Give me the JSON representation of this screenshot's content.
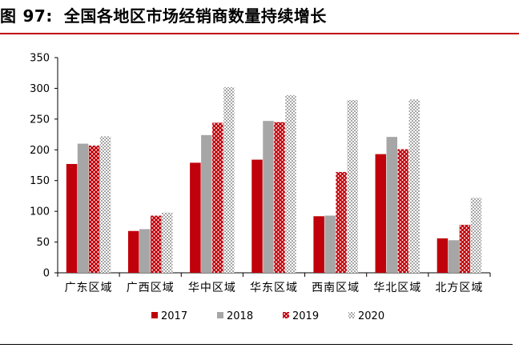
{
  "figure": {
    "label": "图",
    "number": "97:",
    "title": "全国各地区市场经销商数量持续增长"
  },
  "colors": {
    "s2017": "#c0000a",
    "s2018": "#a6a6a6",
    "s2019": "#c0000a",
    "s2020": "#bfbfbf",
    "rule": "#c0000a"
  },
  "chart_data": {
    "type": "bar",
    "title": "全国各地区市场经销商数量持续增长",
    "xlabel": "",
    "ylabel": "",
    "ylim": [
      0,
      350
    ],
    "yticks": [
      "0",
      "50",
      "100",
      "150",
      "200",
      "250",
      "300",
      "350"
    ],
    "categories": [
      "广东区域",
      "广西区域",
      "华中区域",
      "华东区域",
      "西南区域",
      "华北区域",
      "北方区域"
    ],
    "series": [
      {
        "name": "2017",
        "pattern": "solid",
        "values": [
          177,
          68,
          179,
          184,
          92,
          193,
          56
        ]
      },
      {
        "name": "2018",
        "pattern": "solid",
        "values": [
          210,
          71,
          224,
          247,
          93,
          221,
          53
        ]
      },
      {
        "name": "2019",
        "pattern": "crosshatch",
        "values": [
          207,
          93,
          244,
          245,
          164,
          201,
          78
        ]
      },
      {
        "name": "2020",
        "pattern": "dotted",
        "values": [
          222,
          98,
          302,
          289,
          281,
          282,
          122
        ]
      }
    ],
    "legend_position": "bottom",
    "grid": false
  }
}
